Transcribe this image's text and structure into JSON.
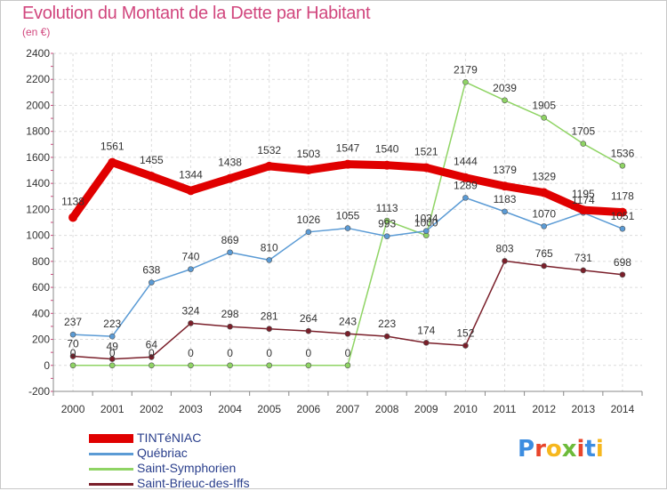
{
  "page": {
    "title": "Evolution du Montant de la Dette par Habitant",
    "subtitle": "(en €)",
    "logo": [
      "P",
      "r",
      "o",
      "x",
      "i",
      "t",
      "i"
    ]
  },
  "chart_data": {
    "type": "line",
    "title": "Evolution du Montant de la Dette par Habitant",
    "subtitle": "(en €)",
    "xlabel": "",
    "ylabel": "",
    "x": [
      "2000",
      "2001",
      "2002",
      "2003",
      "2004",
      "2005",
      "2006",
      "2007",
      "2008",
      "2009",
      "2010",
      "2011",
      "2012",
      "2013",
      "2014"
    ],
    "ylim": [
      -200,
      2400
    ],
    "yticks": [
      -200,
      0,
      200,
      400,
      600,
      800,
      1000,
      1200,
      1400,
      1600,
      1800,
      2000,
      2200,
      2400
    ],
    "grid": true,
    "legend": "bottom-left",
    "series": [
      {
        "name": "TINTéNIAC",
        "color": "#e00000",
        "values": [
          1138,
          1561,
          1455,
          1344,
          1438,
          1532,
          1503,
          1547,
          1540,
          1521,
          1444,
          1379,
          1329,
          1195,
          1178
        ],
        "labels": [
          "1138",
          "1561",
          "1455",
          "1344",
          "1438",
          "1532",
          "1503",
          "1547",
          "1540",
          "1521",
          "1444",
          "1379",
          "1329",
          "1195",
          "1178"
        ]
      },
      {
        "name": "Québriac",
        "color": "#5b9bd5",
        "values": [
          237,
          223,
          638,
          740,
          869,
          810,
          1026,
          1055,
          993,
          1034,
          1289,
          1183,
          1070,
          1174,
          1051
        ],
        "labels": [
          "237",
          "223",
          "638",
          "740",
          "869",
          "810",
          "1026",
          "1055",
          "993",
          "1034",
          "1289",
          "1183",
          "1070",
          "1174",
          "1051"
        ]
      },
      {
        "name": "Saint-Symphorien",
        "color": "#8fd464",
        "values": [
          0,
          0,
          0,
          0,
          0,
          0,
          0,
          0,
          1113,
          1000,
          2179,
          2039,
          1905,
          1705,
          1536
        ],
        "labels": [
          "0",
          "0",
          "0",
          "0",
          "0",
          "0",
          "0",
          "0",
          "1113",
          "1000",
          "2179",
          "2039",
          "1905",
          "1705",
          "1536"
        ]
      },
      {
        "name": "Saint-Brieuc-des-Iffs",
        "color": "#7a1f2a",
        "values": [
          70,
          49,
          64,
          324,
          298,
          281,
          264,
          243,
          223,
          174,
          152,
          803,
          765,
          731,
          698
        ],
        "labels": [
          "70",
          "49",
          "64",
          "324",
          "298",
          "281",
          "264",
          "243",
          "223",
          "174",
          "152",
          "803",
          "765",
          "731",
          "698"
        ]
      }
    ]
  }
}
